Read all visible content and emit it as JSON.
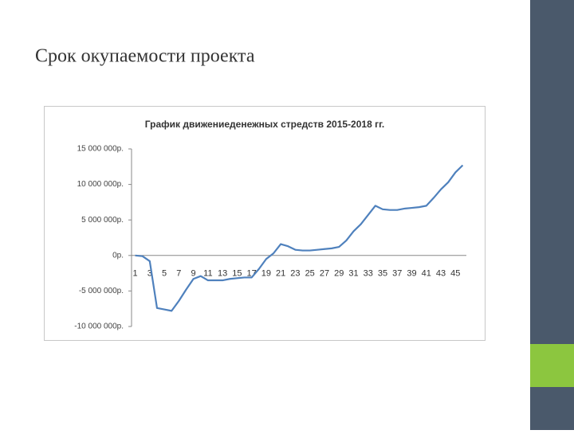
{
  "slide_title": "Срок окупаемости проекта",
  "chart_data": {
    "type": "line",
    "title": "График движениеденежных стредств 2015-2018 гг.",
    "categories": [
      "1",
      null,
      "3",
      null,
      "5",
      null,
      "7",
      null,
      "9",
      null,
      "11",
      null,
      "13",
      null,
      "15",
      null,
      "17",
      null,
      "19",
      null,
      "21",
      null,
      "23",
      null,
      "25",
      null,
      "27",
      null,
      "29",
      null,
      "31",
      null,
      "33",
      null,
      "35",
      null,
      "37",
      null,
      "39",
      null,
      "41",
      null,
      "43",
      null,
      "45",
      null
    ],
    "values": [
      0,
      -100000,
      -800000,
      -7400000,
      -7600000,
      -7800000,
      -6400000,
      -4800000,
      -3300000,
      -2900000,
      -3500000,
      -3500000,
      -3500000,
      -3300000,
      -3200000,
      -3100000,
      -3100000,
      -1900000,
      -500000,
      300000,
      1600000,
      1300000,
      800000,
      700000,
      700000,
      800000,
      900000,
      1000000,
      1200000,
      2100000,
      3400000,
      4400000,
      5700000,
      7000000,
      6500000,
      6400000,
      6400000,
      6600000,
      6700000,
      6800000,
      7000000,
      8100000,
      9300000,
      10300000,
      11700000,
      12700000
    ],
    "color": "#4f81bd",
    "ylim": [
      -10000000,
      15000000
    ],
    "yticks": [
      {
        "value": -10000000,
        "label": "-10 000 000р."
      },
      {
        "value": -5000000,
        "label": "-5 000 000р."
      },
      {
        "value": 0,
        "label": "0р."
      },
      {
        "value": 5000000,
        "label": "5 000 000р."
      },
      {
        "value": 10000000,
        "label": "10 000 000р."
      },
      {
        "value": 15000000,
        "label": "15 000 000р."
      }
    ],
    "grid": false
  }
}
